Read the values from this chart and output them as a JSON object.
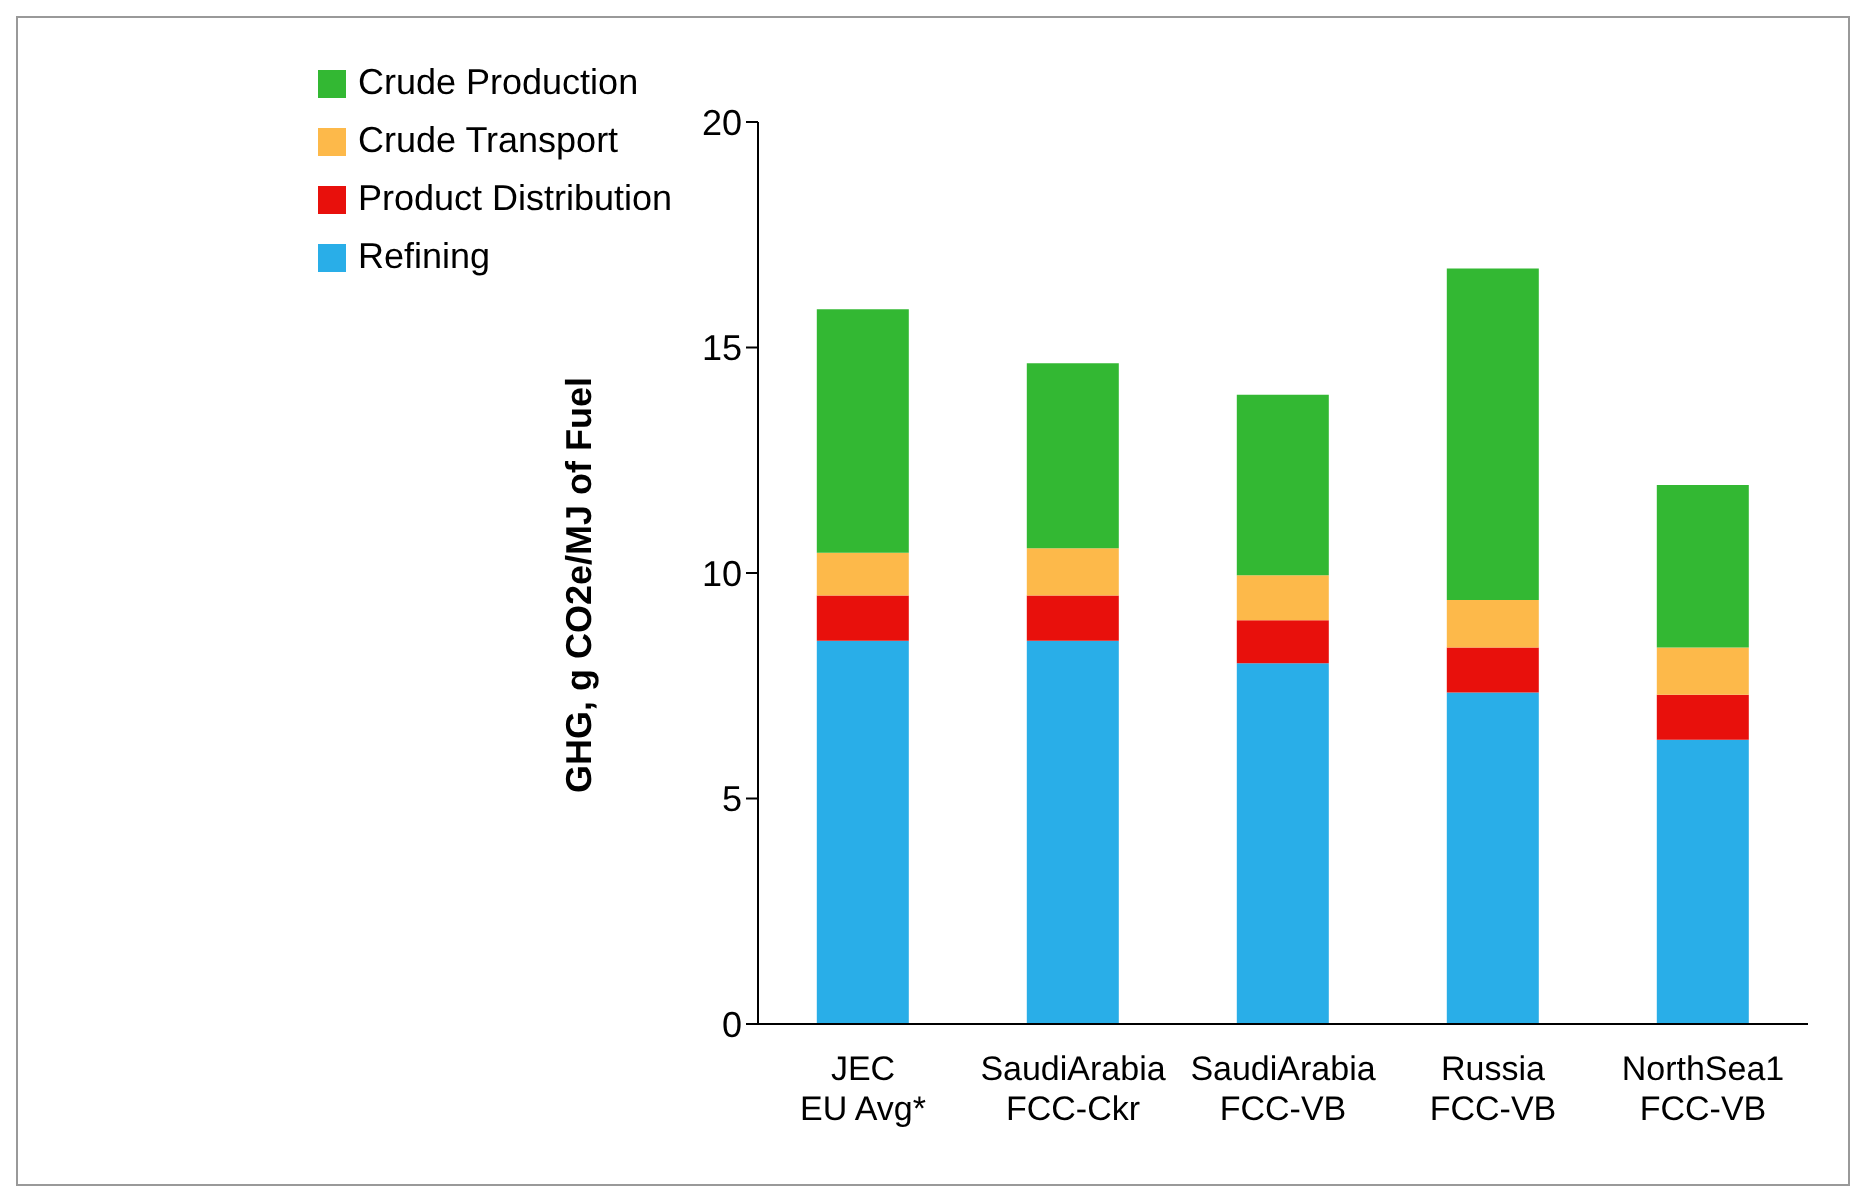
{
  "chart_data": {
    "type": "bar",
    "stacked": true,
    "ylabel": "GHG, g CO2e/MJ of Fuel",
    "categories": [
      "JEC\nEU Avg*",
      "SaudiArabia\nFCC-Ckr",
      "SaudiArabia\nFCC-VB",
      "Russia\nFCC-VB",
      "NorthSea1\nFCC-VB"
    ],
    "series": [
      {
        "name": "Refining",
        "color": "#29aee8",
        "values": [
          8.5,
          8.5,
          8.0,
          7.35,
          6.3
        ]
      },
      {
        "name": "Product Distribution",
        "color": "#e8100c",
        "values": [
          1.0,
          1.0,
          0.95,
          1.0,
          1.0
        ]
      },
      {
        "name": "Crude Transport",
        "color": "#fdb94a",
        "values": [
          0.95,
          1.05,
          1.0,
          1.05,
          1.05
        ]
      },
      {
        "name": "Crude Production",
        "color": "#33b833",
        "values": [
          5.4,
          4.1,
          4.0,
          7.35,
          3.6
        ]
      }
    ],
    "ylim": [
      0,
      20
    ],
    "yticks": [
      0,
      5,
      10,
      15,
      20
    ],
    "grid": false,
    "legend": "top left"
  }
}
